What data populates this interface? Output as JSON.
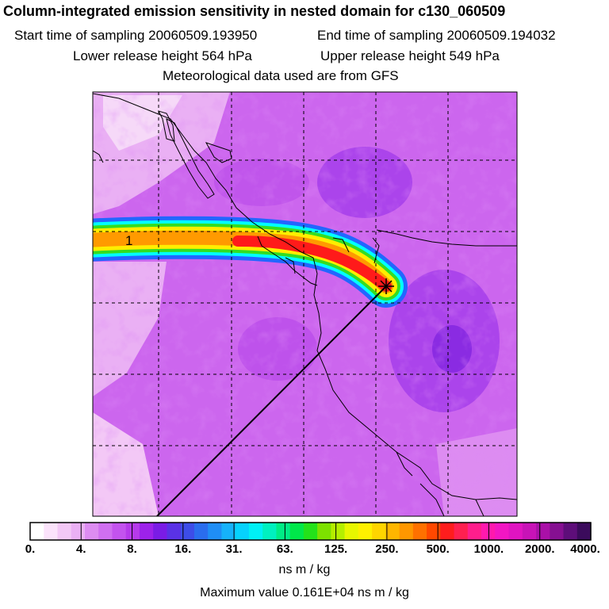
{
  "header": {
    "title": "Column-integrated emission sensitivity in nested domain for c130_060509",
    "start_time": "Start time of sampling 20060509.193950",
    "end_time": "End time of sampling 20060509.194032",
    "lower_height": "Lower release height  564 hPa",
    "upper_height": "Upper release height  549 hPa",
    "met_data": "Meteorological data used are from GFS"
  },
  "map": {
    "plume_label": "1",
    "colors": {
      "background_light": "#e9a8f3",
      "background_mid": "#cc66ee",
      "background_dark": "#8a2be2",
      "plume_red": "#ff1a1a",
      "plume_yellow": "#ffee00",
      "plume_green": "#33dd22",
      "plume_cyan": "#00ffff",
      "plume_blue": "#2266ff"
    }
  },
  "colorbar": {
    "colors": [
      "#ffffff",
      "#fbe3fb",
      "#f3c8f6",
      "#eab0f4",
      "#dd8cf1",
      "#d06ff0",
      "#c353ee",
      "#b63aeb",
      "#9d22ea",
      "#7a1ce6",
      "#5a32e6",
      "#3d4de8",
      "#2a6dee",
      "#1f8ef5",
      "#16b2fa",
      "#06d2fd",
      "#00f0f5",
      "#00f0c0",
      "#00ec86",
      "#00e84a",
      "#24e21a",
      "#7de100",
      "#b5ee00",
      "#e8f600",
      "#fff000",
      "#ffd500",
      "#ffb600",
      "#ff9700",
      "#ff7100",
      "#ff4800",
      "#ff1d1d",
      "#ff2050",
      "#ff1e8c",
      "#ff19ad",
      "#f216c3",
      "#e014c1",
      "#c813b7",
      "#aa10a8",
      "#861092",
      "#5e0e7a",
      "#3b0b5c"
    ],
    "tick_labels": [
      "0.",
      "4.",
      "8.",
      "16.",
      "31.",
      "63.",
      "125.",
      "250.",
      "500.",
      "1000.",
      "2000.",
      "4000."
    ],
    "units": "ns m / kg",
    "max_value": "Maximum value  0.161E+04 ns m / kg"
  }
}
